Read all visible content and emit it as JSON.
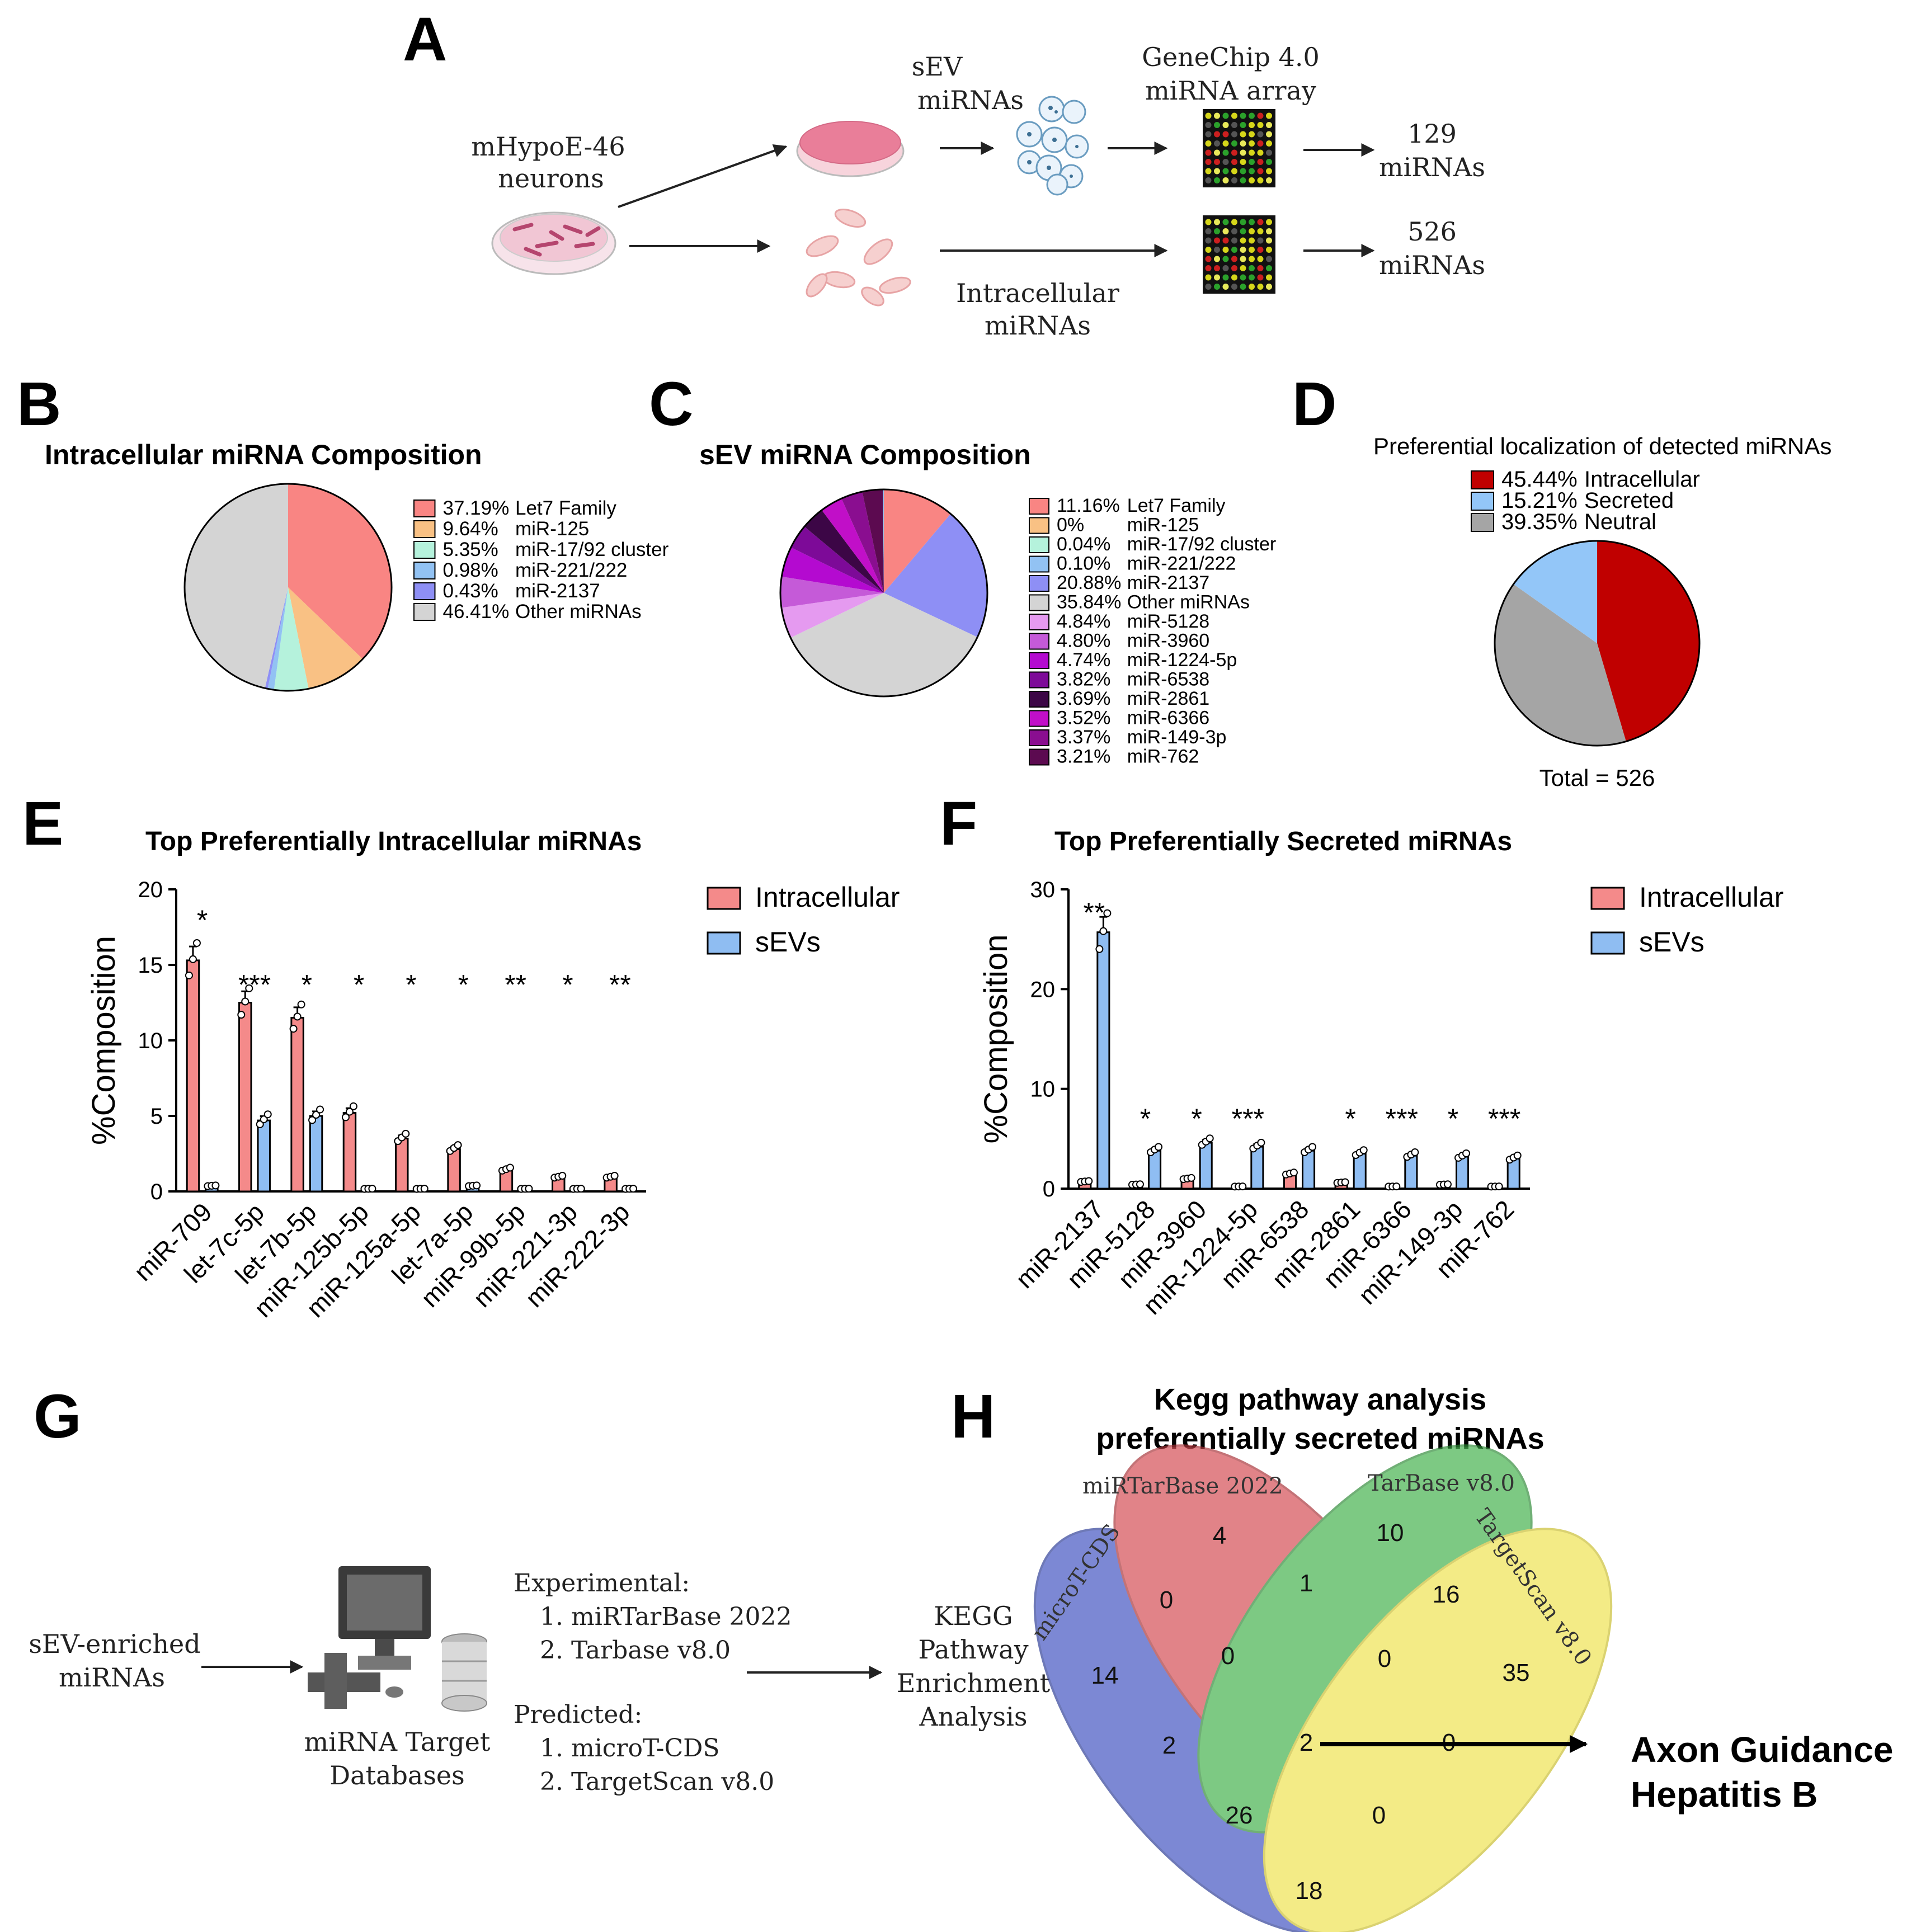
{
  "colors": {
    "pink": "#f48a8a",
    "blue": "#8fbdf2",
    "red_dark": "#c00000",
    "grey": "#d3d3d3"
  },
  "panels": {
    "a": "A",
    "b": "B",
    "c": "C",
    "d": "D",
    "e": "E",
    "f": "F",
    "g": "G",
    "h": "H"
  },
  "panel_a": {
    "source_line1": "mHypoE-46",
    "source_line2": "neurons",
    "sev_line1": "sEV",
    "sev_line2": "miRNAs",
    "chip_line1": "GeneChip 4.0",
    "chip_line2": "miRNA array",
    "intra_line1": "Intracellular",
    "intra_line2": "miRNAs",
    "result_top_count": "129",
    "result_top_label": "miRNAs",
    "result_bottom_count": "526",
    "result_bottom_label": "miRNAs"
  },
  "panel_g": {
    "input_line1": "sEV-enriched",
    "input_line2": "miRNAs",
    "db_line1": "miRNA Target",
    "db_line2": "Databases",
    "experimental_title": "Experimental:",
    "exp_1": "1.  miRTarBase 2022",
    "exp_2": "2.  Tarbase v8.0",
    "predicted_title": "Predicted:",
    "pred_1": "1.  microT-CDS",
    "pred_2": "2.  TargetScan v8.0",
    "kegg_line1": "KEGG",
    "kegg_line2": "Pathway",
    "kegg_line3": "Enrichment",
    "kegg_line4": "Analysis"
  },
  "panel_h": {
    "title_line1": "Kegg pathway analysis",
    "title_line2": "preferentially secreted miRNAs",
    "set_mirtarbase": "miRTarBase 2022",
    "set_tarbase": "TarBase v8.0",
    "set_microt": "microT-CDS",
    "set_targetscan": "TargetScan v8.0",
    "regions": {
      "only_mirtarbase": "4",
      "only_tarbase": "10",
      "only_microt": "14",
      "only_targetscan": "35",
      "mirtarbase_tarbase": "1",
      "mirtarbase_microt": "0",
      "tarbase_targetscan": "16",
      "mirtarbase_tarbase_microt": "0",
      "mirtarbase_tarbase_targetscan": "0",
      "all_four": "2",
      "microt_tarbase": "2",
      "mirtarbase_targetscan": "0",
      "microt_tarbase_targetscan": "26",
      "microt_mirtarbase_targetscan": "0",
      "microt_targetscan": "18"
    },
    "result_line1": "Axon Guidance",
    "result_line2": "Hepatitis B"
  },
  "chart_data": [
    {
      "id": "B",
      "type": "pie",
      "title": "Intracellular miRNA Composition",
      "slices": [
        {
          "label": "Let7 Family",
          "pct_label": "37.19%",
          "value": 37.19,
          "color": "#f98583"
        },
        {
          "label": "miR-125",
          "pct_label": "9.64%",
          "value": 9.64,
          "color": "#f9c184"
        },
        {
          "label": "miR-17/92 cluster",
          "pct_label": "5.35%",
          "value": 5.35,
          "color": "#b5f2dc"
        },
        {
          "label": "miR-221/222",
          "pct_label": "0.98%",
          "value": 0.98,
          "color": "#92c2f3"
        },
        {
          "label": "miR-2137",
          "pct_label": "0.43%",
          "value": 0.43,
          "color": "#8e8ff5"
        },
        {
          "label": "Other miRNAs",
          "pct_label": "46.41%",
          "value": 46.41,
          "color": "#d4d4d4"
        }
      ]
    },
    {
      "id": "C",
      "type": "pie",
      "title": "sEV miRNA Composition",
      "slices": [
        {
          "label": "Let7 Family",
          "pct_label": "11.16%",
          "value": 11.16,
          "color": "#f98583"
        },
        {
          "label": "miR-125",
          "pct_label": "0%",
          "value": 0,
          "color": "#f9c184"
        },
        {
          "label": "miR-17/92 cluster",
          "pct_label": "0.04%",
          "value": 0.04,
          "color": "#b5f2dc"
        },
        {
          "label": "miR-221/222",
          "pct_label": "0.10%",
          "value": 0.1,
          "color": "#92c2f3"
        },
        {
          "label": "miR-2137",
          "pct_label": "20.88%",
          "value": 20.88,
          "color": "#8e8ff5"
        },
        {
          "label": "Other miRNAs",
          "pct_label": "35.84%",
          "value": 35.84,
          "color": "#d4d4d4"
        },
        {
          "label": "miR-5128",
          "pct_label": "4.84%",
          "value": 4.84,
          "color": "#e59af0"
        },
        {
          "label": "miR-3960",
          "pct_label": "4.80%",
          "value": 4.8,
          "color": "#c55ad8"
        },
        {
          "label": "miR-1224-5p",
          "pct_label": "4.74%",
          "value": 4.74,
          "color": "#b40ad0"
        },
        {
          "label": "miR-6538",
          "pct_label": "3.82%",
          "value": 3.82,
          "color": "#7d0a98"
        },
        {
          "label": "miR-2861",
          "pct_label": "3.69%",
          "value": 3.69,
          "color": "#3c0646"
        },
        {
          "label": "miR-6366",
          "pct_label": "3.52%",
          "value": 3.52,
          "color": "#c10fc8"
        },
        {
          "label": "miR-149-3p",
          "pct_label": "3.37%",
          "value": 3.37,
          "color": "#8a0e90"
        },
        {
          "label": "miR-762",
          "pct_label": "3.21%",
          "value": 3.21,
          "color": "#5c0a50"
        }
      ]
    },
    {
      "id": "D",
      "type": "pie",
      "title": "Preferential localization of detected miRNAs",
      "footer": "Total = 526",
      "slices": [
        {
          "label": "Intracellular",
          "pct_label": "45.44%",
          "value": 45.44,
          "color": "#c00000"
        },
        {
          "label": "Neutral",
          "pct_label": "39.35%",
          "value": 39.35,
          "color": "#a5a5a5"
        },
        {
          "label": "Secreted",
          "pct_label": "15.21%",
          "value": 15.21,
          "color": "#93c6f8"
        }
      ],
      "legend_order": [
        "Intracellular",
        "Secreted",
        "Neutral"
      ]
    },
    {
      "id": "E",
      "type": "bar",
      "title": "Top Preferentially Intracellular miRNAs",
      "ylabel": "%Composition",
      "ylim": [
        0,
        20
      ],
      "yticks": [
        "0",
        "5",
        "10",
        "15",
        "20"
      ],
      "categories": [
        "miR-709",
        "let-7c-5p",
        "let-7b-5p",
        "miR-125b-5p",
        "miR-125a-5p",
        "let-7a-5p",
        "miR-99b-5p",
        "miR-221-3p",
        "miR-222-3p"
      ],
      "series": [
        {
          "name": "Intracellular",
          "color": "#f48a8a",
          "values": [
            15.3,
            12.5,
            11.5,
            5.2,
            3.5,
            2.8,
            1.4,
            0.9,
            0.9
          ]
        },
        {
          "name": "sEVs",
          "color": "#8fbdf2",
          "values": [
            0.3,
            4.7,
            5.0,
            0.1,
            0.1,
            0.3,
            0.1,
            0.1,
            0.1
          ]
        }
      ],
      "significance": [
        "*",
        "***",
        "*",
        "*",
        "*",
        "*",
        "**",
        "*",
        "**"
      ]
    },
    {
      "id": "F",
      "type": "bar",
      "title": "Top Preferentially Secreted miRNAs",
      "ylabel": "%Composition",
      "ylim": [
        0,
        30
      ],
      "yticks": [
        "0",
        "10",
        "20",
        "30"
      ],
      "categories": [
        "miR-2137",
        "miR-5128",
        "miR-3960",
        "miR-1224-5p",
        "miR-6538",
        "miR-2861",
        "miR-6366",
        "miR-149-3p",
        "miR-762"
      ],
      "series": [
        {
          "name": "Intracellular",
          "color": "#f48a8a",
          "values": [
            0.6,
            0.3,
            0.9,
            0.1,
            1.4,
            0.5,
            0.1,
            0.3,
            0.1
          ]
        },
        {
          "name": "sEVs",
          "color": "#8fbdf2",
          "values": [
            25.7,
            3.8,
            4.6,
            4.2,
            3.8,
            3.5,
            3.3,
            3.2,
            3.0
          ]
        }
      ],
      "significance": [
        "**",
        "*",
        "*",
        "***",
        "",
        "*",
        "***",
        "*",
        "***"
      ]
    }
  ]
}
